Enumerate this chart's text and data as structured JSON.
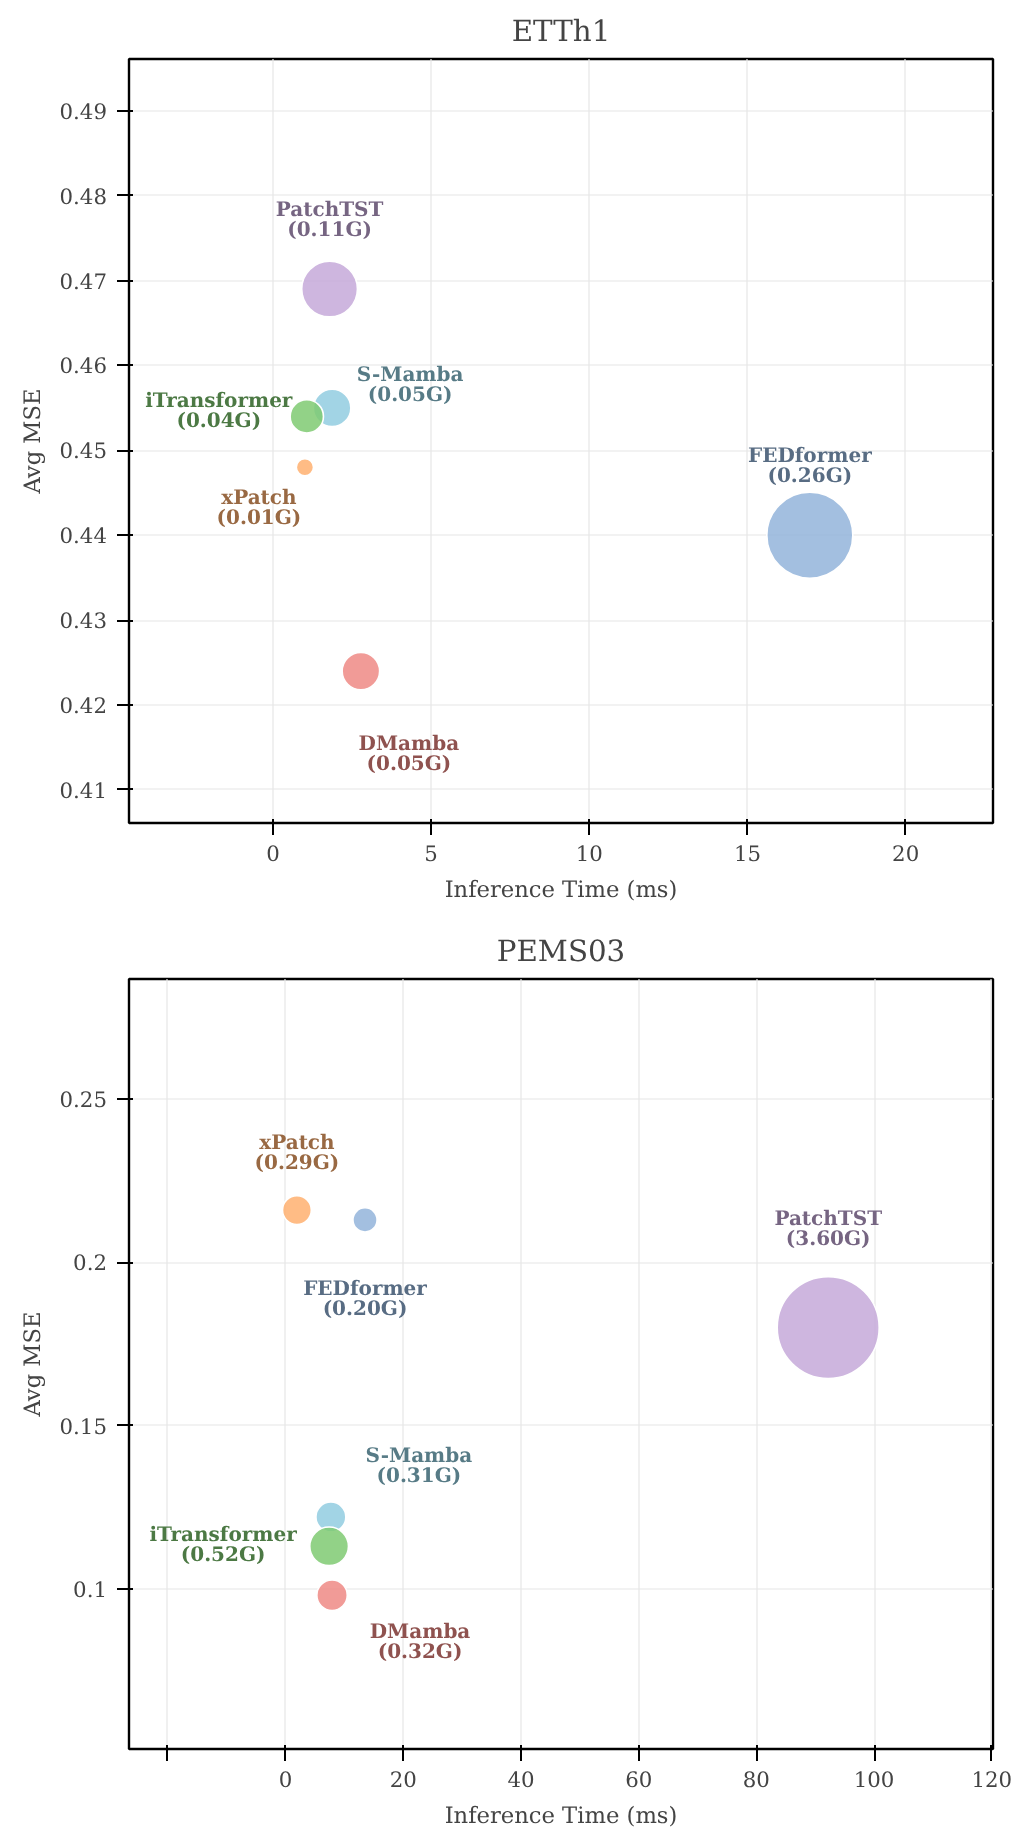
{
  "chart_data": [
    {
      "type": "bubble",
      "title": "ETTh1",
      "xlabel": "Inference Time (ms)",
      "ylabel": "Avg MSE",
      "xlim": [
        -4.55,
        22.76
      ],
      "ylim": [
        0.4061,
        0.4961
      ],
      "xticks": [
        0,
        5,
        10,
        15,
        20
      ],
      "yticks": [
        0.41,
        0.42,
        0.43,
        0.44,
        0.45,
        0.46,
        0.47,
        0.48,
        0.49
      ],
      "grid": true,
      "series": [
        {
          "name": "PatchTST",
          "color": "#c5a9d9",
          "x": [
            1.79
          ],
          "values": [
            0.469
          ],
          "sizes": [
            0.42
          ]
        },
        {
          "name": "S-Mamba",
          "color": "#92cde0",
          "x": [
            1.87
          ],
          "values": [
            0.455
          ],
          "sizes": [
            0.19
          ]
        },
        {
          "name": "iTransformer",
          "color": "#7fca72",
          "x": [
            1.07
          ],
          "values": [
            0.454
          ],
          "sizes": [
            0.15
          ]
        },
        {
          "name": "xPatch",
          "color": "#ffb070",
          "x": [
            1.01
          ],
          "values": [
            0.448
          ],
          "sizes": [
            0.04
          ]
        },
        {
          "name": "FEDformer",
          "color": "#93b4db",
          "x": [
            16.97
          ],
          "values": [
            0.44
          ],
          "sizes": [
            1
          ]
        },
        {
          "name": "DMamba",
          "color": "#ef8a85",
          "x": [
            2.78
          ],
          "values": [
            0.424
          ],
          "sizes": [
            0.19
          ]
        }
      ],
      "annotations": [
        "(0.11G)",
        "(0.05G)",
        "(0.04G)",
        "(0.01G)",
        "(0.26G)",
        "(0.05G)"
      ]
    },
    {
      "type": "bubble",
      "title": "PEMS03",
      "xlabel": "Inference Time (ms)",
      "ylabel": "Avg MSE",
      "xlim": [
        -26.6,
        120.2
      ],
      "ylim": [
        0.0509,
        0.2868
      ],
      "xticks": [
        {
          "value": -20,
          "label": null
        },
        0,
        20,
        40,
        60,
        80,
        100,
        120
      ],
      "yticks": [
        0.1,
        0.15,
        0.2,
        0.25
      ],
      "grid": true,
      "series": [
        {
          "name": "xPatch",
          "color": "#ffb070",
          "x": [
            1.93
          ],
          "values": [
            0.216
          ],
          "sizes": [
            0.08
          ]
        },
        {
          "name": "FEDformer",
          "color": "#93b4db",
          "x": [
            13.5
          ],
          "values": [
            0.213
          ],
          "sizes": [
            0.056
          ]
        },
        {
          "name": "PatchTST",
          "color": "#c5a9d9",
          "x": [
            92.2
          ],
          "values": [
            0.18
          ],
          "sizes": [
            1
          ]
        },
        {
          "name": "S-Mamba",
          "color": "#92cde0",
          "x": [
            7.7
          ],
          "values": [
            0.122
          ],
          "sizes": [
            0.086
          ]
        },
        {
          "name": "iTransformer",
          "color": "#7fca72",
          "x": [
            7.4
          ],
          "values": [
            0.113
          ],
          "sizes": [
            0.144
          ]
        },
        {
          "name": "DMamba",
          "color": "#ef8a85",
          "x": [
            7.9
          ],
          "values": [
            0.098
          ],
          "sizes": [
            0.089
          ]
        }
      ],
      "annotations": [
        "(0.29G)",
        "(0.20G)",
        "(3.60G)",
        "(0.31G)",
        "(0.52G)",
        "(0.32G)"
      ]
    }
  ]
}
